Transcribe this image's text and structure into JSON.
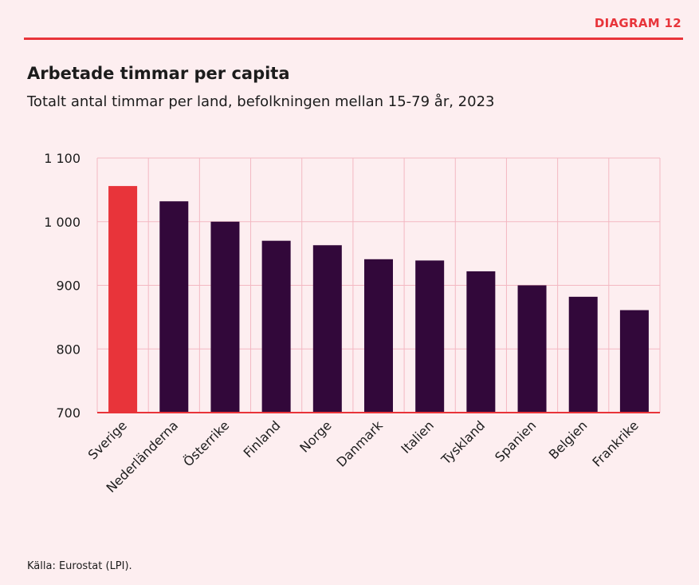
{
  "header": {
    "diagram_label": "DIAGRAM 12",
    "title": "Arbetade timmar per capita",
    "subtitle": "Totalt antal timmar per land, befolkningen mellan 15-79 år, 2023"
  },
  "footer": {
    "source": "Källa: Eurostat (LPI)."
  },
  "colors": {
    "accent": "#e8343a",
    "bar": "#32083a",
    "grid": "#f3b8c2",
    "background": "#fdeef0"
  },
  "chart_data": {
    "type": "bar",
    "title": "Arbetade timmar per capita",
    "subtitle": "Totalt antal timmar per land, befolkningen mellan 15-79 år, 2023",
    "categories": [
      "Sverige",
      "Nederländerna",
      "Österrike",
      "Finland",
      "Norge",
      "Danmark",
      "Italien",
      "Tyskland",
      "Spanien",
      "Belgien",
      "Frankrike"
    ],
    "values": [
      1056,
      1032,
      1000,
      970,
      963,
      941,
      939,
      922,
      900,
      882,
      861
    ],
    "highlight_index": 0,
    "ylim": [
      700,
      1100
    ],
    "yticks": [
      700,
      800,
      900,
      1000,
      1100
    ],
    "ytick_labels": [
      "700",
      "800",
      "900",
      "1 000",
      "1 100"
    ],
    "grid": true,
    "xlabel": "",
    "ylabel": ""
  }
}
